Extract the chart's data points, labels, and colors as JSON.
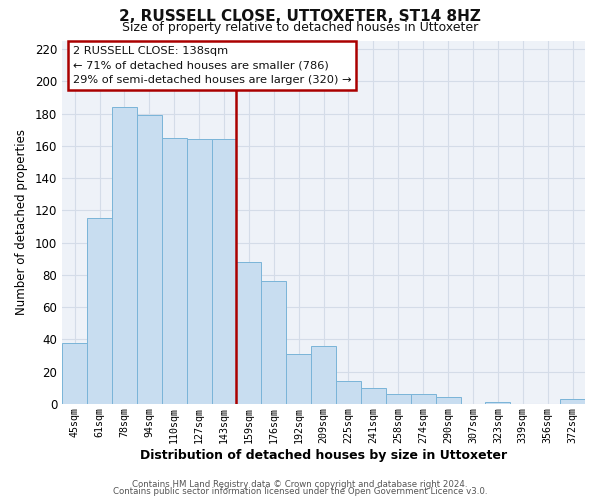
{
  "title": "2, RUSSELL CLOSE, UTTOXETER, ST14 8HZ",
  "subtitle": "Size of property relative to detached houses in Uttoxeter",
  "xlabel": "Distribution of detached houses by size in Uttoxeter",
  "ylabel": "Number of detached properties",
  "bar_labels": [
    "45sqm",
    "61sqm",
    "78sqm",
    "94sqm",
    "110sqm",
    "127sqm",
    "143sqm",
    "159sqm",
    "176sqm",
    "192sqm",
    "209sqm",
    "225sqm",
    "241sqm",
    "258sqm",
    "274sqm",
    "290sqm",
    "307sqm",
    "323sqm",
    "339sqm",
    "356sqm",
    "372sqm"
  ],
  "bar_values": [
    38,
    115,
    184,
    179,
    165,
    164,
    164,
    88,
    76,
    31,
    36,
    14,
    10,
    6,
    6,
    4,
    0,
    1,
    0,
    0,
    3
  ],
  "bar_color": "#c8ddf0",
  "bar_edge_color": "#7ab4d8",
  "highlight_index": 6,
  "highlight_line_color": "#aa0000",
  "ylim": [
    0,
    225
  ],
  "yticks": [
    0,
    20,
    40,
    60,
    80,
    100,
    120,
    140,
    160,
    180,
    200,
    220
  ],
  "annotation_title": "2 RUSSELL CLOSE: 138sqm",
  "annotation_line1": "← 71% of detached houses are smaller (786)",
  "annotation_line2": "29% of semi-detached houses are larger (320) →",
  "annotation_box_color": "#ffffff",
  "annotation_box_edge": "#aa0000",
  "footer_line1": "Contains HM Land Registry data © Crown copyright and database right 2024.",
  "footer_line2": "Contains public sector information licensed under the Open Government Licence v3.0.",
  "grid_color": "#d4dce8",
  "bg_color": "#ffffff",
  "plot_bg_color": "#eef2f8"
}
